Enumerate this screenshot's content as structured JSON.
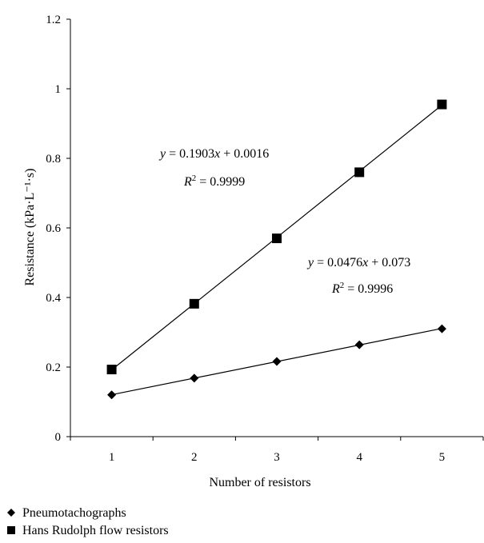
{
  "chart_data": {
    "type": "line",
    "title": "",
    "xlabel": "Number of resistors",
    "ylabel": "Resistance (kPa·L⁻¹·s)",
    "x": [
      1,
      2,
      3,
      4,
      5
    ],
    "x_ticks": [
      "1",
      "2",
      "3",
      "4",
      "5"
    ],
    "xlim": [
      0.5,
      5.5
    ],
    "ylim": [
      0,
      1.2
    ],
    "y_ticks": [
      "0",
      "0.2",
      "0.4",
      "0.6",
      "0.8",
      "1",
      "1.2"
    ],
    "grid": false,
    "legend_position": "bottom-left",
    "series": [
      {
        "name": "Pneumotachographs",
        "marker": "diamond",
        "color": "#000000",
        "values": [
          0.12,
          0.168,
          0.216,
          0.264,
          0.31
        ],
        "fit": {
          "slope": 0.0476,
          "intercept": 0.073
        },
        "equation": "y = 0.0476x + 0.073",
        "r2_label": "R2 = 0.9996"
      },
      {
        "name": "Hans Rudolph flow resistors",
        "marker": "square",
        "color": "#000000",
        "values": [
          0.193,
          0.382,
          0.57,
          0.76,
          0.955
        ],
        "fit": {
          "slope": 0.1903,
          "intercept": 0.0016
        },
        "equation": "y = 0.1903x + 0.0016",
        "r2_label": "R2 = 0.9999"
      }
    ],
    "annotations": {
      "hans_eq": {
        "lhs": "y",
        "coef": " = 0.1903",
        "var": "x",
        "rest": " + 0.0016"
      },
      "hans_r2": {
        "base": "R",
        "sup": "2",
        "rest": " = 0.9999"
      },
      "pneumo_eq": {
        "lhs": "y",
        "coef": " = 0.0476",
        "var": "x",
        "rest": " + 0.073"
      },
      "pneumo_r2": {
        "base": "R",
        "sup": "2",
        "rest": " = 0.9996"
      }
    }
  }
}
